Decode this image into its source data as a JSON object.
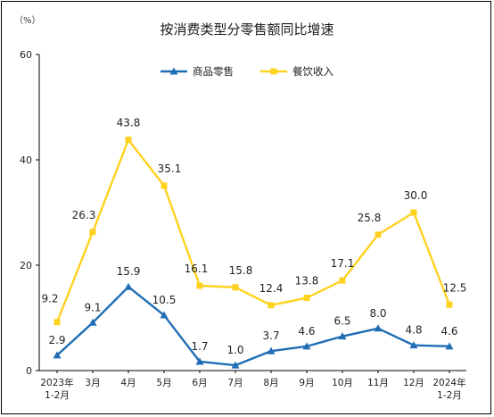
{
  "title": "按消费类型分零售额同比增速",
  "unit_label": "（%）",
  "chart_data": {
    "type": "line",
    "categories": [
      [
        "2023年",
        "1-2月"
      ],
      [
        "3月"
      ],
      [
        "4月"
      ],
      [
        "5月"
      ],
      [
        "6月"
      ],
      [
        "7月"
      ],
      [
        "8月"
      ],
      [
        "9月"
      ],
      [
        "10月"
      ],
      [
        "11月"
      ],
      [
        "12月"
      ],
      [
        "2024年",
        "1-2月"
      ]
    ],
    "ylim": [
      0,
      60
    ],
    "yticks": [
      0,
      20,
      40,
      60
    ],
    "grid": false,
    "legend_position": "top",
    "series": [
      {
        "name": "商品零售",
        "color": "#1f6db5",
        "marker": "triangle",
        "values": [
          2.9,
          9.1,
          15.9,
          10.5,
          1.7,
          1.0,
          3.7,
          4.6,
          6.5,
          8.0,
          4.8,
          4.6
        ]
      },
      {
        "name": "餐饮收入",
        "color": "#ffd21f",
        "marker": "square",
        "values": [
          9.2,
          26.3,
          43.8,
          35.1,
          16.1,
          15.8,
          12.4,
          13.8,
          17.1,
          25.8,
          30.0,
          12.5
        ]
      }
    ]
  }
}
